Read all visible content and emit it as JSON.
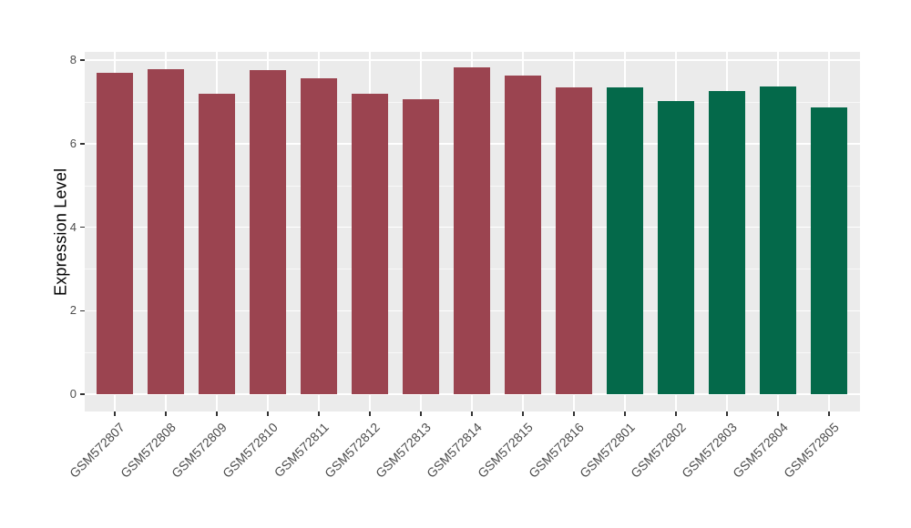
{
  "chart_data": {
    "type": "bar",
    "title": "",
    "xlabel": "",
    "ylabel": "Expression Level",
    "categories": [
      "GSM572807",
      "GSM572808",
      "GSM572809",
      "GSM572810",
      "GSM572811",
      "GSM572812",
      "GSM572813",
      "GSM572814",
      "GSM572815",
      "GSM572816",
      "GSM572801",
      "GSM572802",
      "GSM572803",
      "GSM572804",
      "GSM572805"
    ],
    "values": [
      7.7,
      7.78,
      7.19,
      7.76,
      7.56,
      7.19,
      7.06,
      7.82,
      7.63,
      7.35,
      7.35,
      7.02,
      7.26,
      7.36,
      6.87
    ],
    "bar_colors": [
      "#9B4450",
      "#9B4450",
      "#9B4450",
      "#9B4450",
      "#9B4450",
      "#9B4450",
      "#9B4450",
      "#9B4450",
      "#9B4450",
      "#9B4450",
      "#04694A",
      "#04694A",
      "#04694A",
      "#04694A",
      "#04694A"
    ],
    "yticks": [
      0,
      2,
      4,
      6,
      8
    ],
    "ylim": [
      -0.4,
      8.2
    ],
    "grid": true,
    "legend_position": "none",
    "x_label_angle": 45,
    "panel_bg": "#EBEBEB",
    "gridline_color": "#FFFFFF",
    "axis_text_color": "#4D4D4D",
    "axis_title_color": "#000000"
  }
}
